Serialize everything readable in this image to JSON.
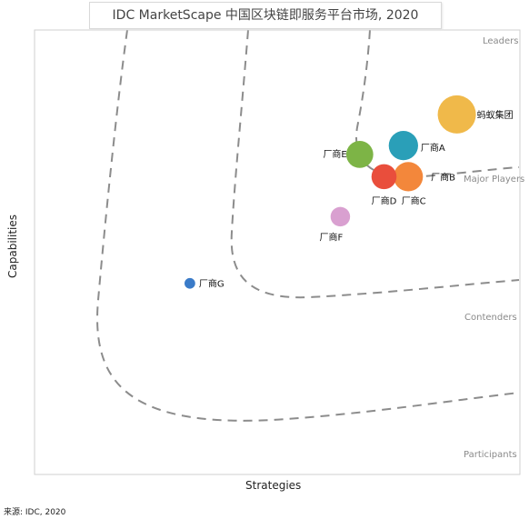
{
  "chart_data": {
    "type": "scatter",
    "title": "IDC MarketScape 中国区块链即服务平台市场, 2020",
    "xlabel": "Strategies",
    "ylabel": "Capabilities",
    "xlim": [
      0,
      1
    ],
    "ylim": [
      0,
      1
    ],
    "grid": false,
    "regions": [
      "Leaders",
      "Major Players",
      "Contenders",
      "Participants"
    ],
    "points": [
      {
        "label": "蚂蚁集团",
        "x": 0.87,
        "y": 0.81,
        "size": 1.0,
        "color": "#F0B94A"
      },
      {
        "label": "厂商A",
        "x": 0.76,
        "y": 0.74,
        "size": 0.73,
        "color": "#2A9FB8"
      },
      {
        "label": "厂商B",
        "x": 0.77,
        "y": 0.67,
        "size": 0.73,
        "color": "#F3873B"
      },
      {
        "label": "厂商C",
        "x": 0.77,
        "y": 0.67,
        "size": 0.0,
        "color": "#F3873B"
      },
      {
        "label": "厂商D",
        "x": 0.72,
        "y": 0.67,
        "size": 0.6,
        "color": "#E94E3C"
      },
      {
        "label": "厂商E",
        "x": 0.67,
        "y": 0.72,
        "size": 0.66,
        "color": "#7DB446"
      },
      {
        "label": "厂商F",
        "x": 0.63,
        "y": 0.58,
        "size": 0.43,
        "color": "#D9A0D0"
      },
      {
        "label": "厂商G",
        "x": 0.32,
        "y": 0.43,
        "size": 0.16,
        "color": "#3A7BC8"
      }
    ]
  },
  "source": "来源: IDC, 2020"
}
